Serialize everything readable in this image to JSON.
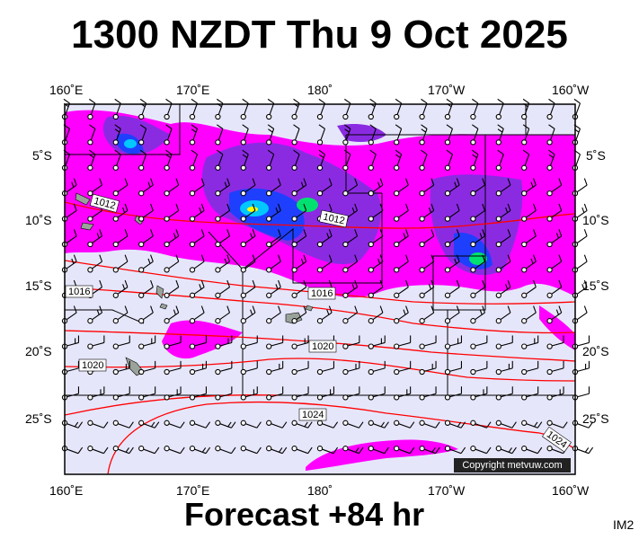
{
  "title": "1300 NZDT Thu 9 Oct 2025",
  "footer": "Forecast +84 hr",
  "image_tag": "IM2",
  "copyright": "Copyright metvuw.com",
  "axes": {
    "lon_labels_top": [
      "160˚E",
      "170˚E",
      "180˚",
      "170˚W",
      "160˚W"
    ],
    "lon_labels_bottom": [
      "160˚E",
      "170˚E",
      "180˚",
      "170˚W",
      "160˚W"
    ],
    "lat_labels_left": [
      "5˚S",
      "10˚S",
      "15˚S",
      "20˚S",
      "25˚S"
    ],
    "lat_labels_right": [
      "5˚S",
      "10˚S",
      "15˚S",
      "20˚S",
      "25˚S"
    ]
  },
  "isobar_labels": [
    "1012",
    "1012",
    "1016",
    "1016",
    "1020",
    "1020",
    "1024",
    "1024"
  ],
  "colors": {
    "ocean": "#e6e6fb",
    "rain_light": "#ff00ff",
    "rain_moderate": "#8a2be2",
    "rain_heavy": "#1f3fff",
    "rain_very_heavy": "#00c8ff",
    "rain_extreme": "#ffff00",
    "isobar": "#ff0000",
    "land": "#9aa39a",
    "border": "#000000"
  }
}
